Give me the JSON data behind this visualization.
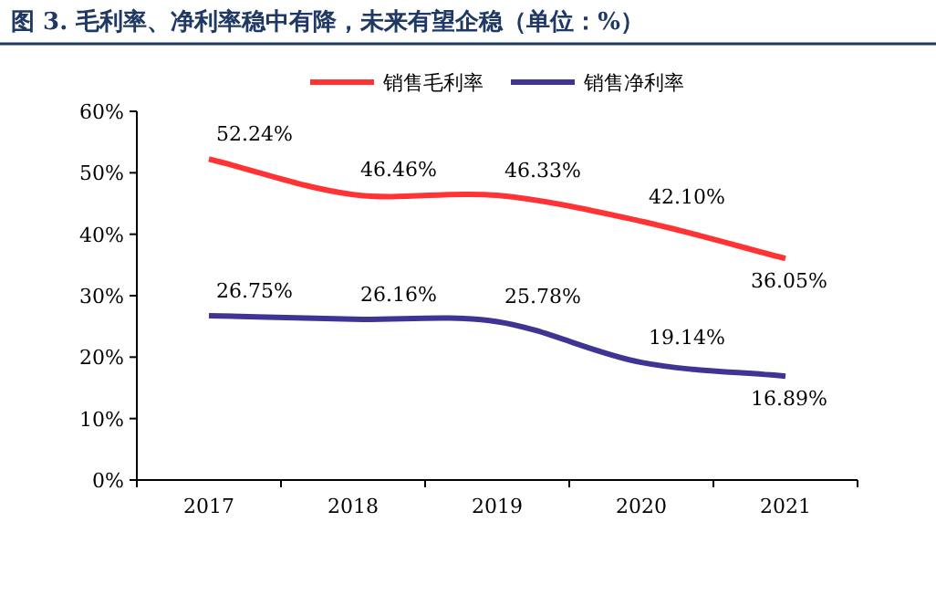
{
  "chart_data": {
    "type": "line",
    "title": "图 3. 毛利率、净利率稳中有降，未来有望企稳（单位：%）",
    "categories": [
      "2017",
      "2018",
      "2019",
      "2020",
      "2021"
    ],
    "series": [
      {
        "name": "销售毛利率",
        "color": "#ff3333",
        "values": [
          52.24,
          46.46,
          46.33,
          42.1,
          36.05
        ],
        "value_labels": [
          "52.24%",
          "46.46%",
          "46.33%",
          "42.10%",
          "36.05%"
        ]
      },
      {
        "name": "销售净利率",
        "color": "#3f3393",
        "values": [
          26.75,
          26.16,
          25.78,
          19.14,
          16.89
        ],
        "value_labels": [
          "26.75%",
          "26.16%",
          "25.78%",
          "19.14%",
          "16.89%"
        ]
      }
    ],
    "ylim": [
      0,
      60
    ],
    "yticks": [
      {
        "value": 0,
        "label": "0%"
      },
      {
        "value": 10,
        "label": "10%"
      },
      {
        "value": 20,
        "label": "20%"
      },
      {
        "value": 30,
        "label": "30%"
      },
      {
        "value": 40,
        "label": "40%"
      },
      {
        "value": 50,
        "label": "50%"
      },
      {
        "value": 60,
        "label": "60%"
      }
    ],
    "legend": "top",
    "grid": false,
    "marker": "none",
    "line_style": "solid"
  }
}
